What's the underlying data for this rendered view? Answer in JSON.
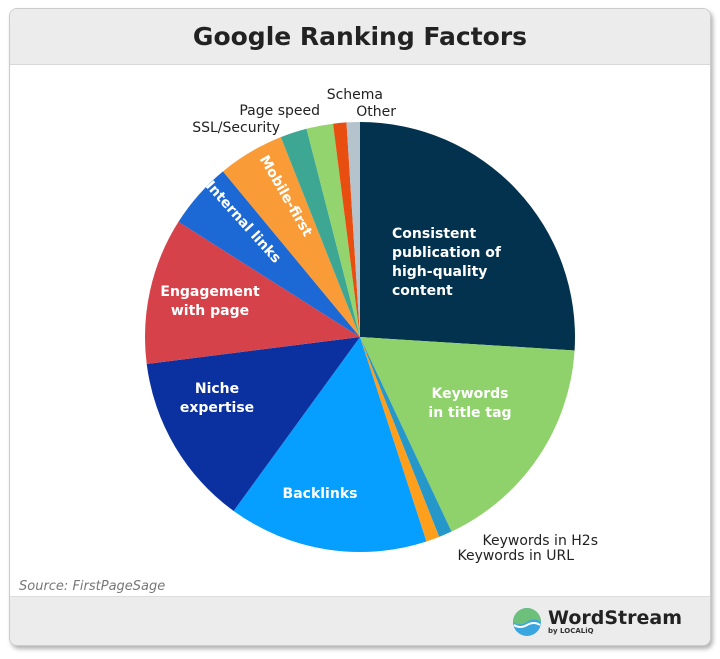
{
  "title": "Google Ranking Factors",
  "source": "Source: FirstPageSage",
  "brand": {
    "name": "WordStream",
    "sub": "by LOCALiQ"
  },
  "chart_data": {
    "type": "pie",
    "title": "Google Ranking Factors",
    "start": "top",
    "direction": "clockwise",
    "slices": [
      {
        "label": "Consistent publication of high-quality content",
        "value": 26,
        "color": "#03324e",
        "label_position": "inside",
        "lines": [
          "Consistent",
          "publication of",
          "high-quality",
          "content"
        ]
      },
      {
        "label": "Keywords in title tag",
        "value": 17,
        "color": "#8fd16a",
        "label_position": "inside",
        "lines": [
          "Keywords",
          "in title tag"
        ]
      },
      {
        "label": "Keywords in H2s",
        "value": 1,
        "color": "#2598c9",
        "label_position": "outside"
      },
      {
        "label": "Keywords in URL",
        "value": 1,
        "color": "#ff9f1c",
        "label_position": "outside"
      },
      {
        "label": "Backlinks",
        "value": 15,
        "color": "#069fff",
        "label_position": "inside",
        "lines": [
          "Backlinks"
        ]
      },
      {
        "label": "Niche expertise",
        "value": 13,
        "color": "#0b31a0",
        "label_position": "inside",
        "lines": [
          "Niche",
          "expertise"
        ]
      },
      {
        "label": "Engagement with page",
        "value": 11,
        "color": "#d6424a",
        "label_position": "inside",
        "lines": [
          "Engagement",
          "with page"
        ]
      },
      {
        "label": "Internal links",
        "value": 5,
        "color": "#1c68d4",
        "label_position": "inside",
        "lines": [
          "Internal links"
        ]
      },
      {
        "label": "Mobile-first",
        "value": 5,
        "color": "#f99b36",
        "label_position": "inside",
        "lines": [
          "Mobile-first"
        ]
      },
      {
        "label": "SSL/Security",
        "value": 2,
        "color": "#3ea794",
        "label_position": "outside"
      },
      {
        "label": "Page speed",
        "value": 2,
        "color": "#93d46e",
        "label_position": "outside"
      },
      {
        "label": "Schema",
        "value": 1,
        "color": "#e74e0f",
        "label_position": "outside"
      },
      {
        "label": "Other",
        "value": 1,
        "color": "#b5c3cd",
        "label_position": "outside"
      }
    ]
  }
}
